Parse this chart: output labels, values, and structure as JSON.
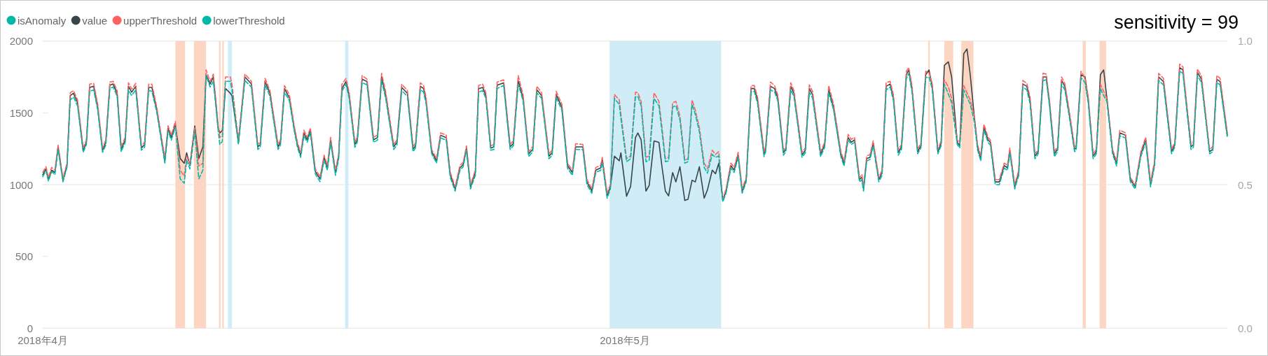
{
  "chart_data": {
    "type": "line",
    "title": "sensitivity = 99",
    "x": [
      "2018-04-01T00:00",
      "2018-04-01T04:00",
      "2018-04-01T07:00",
      "2018-04-01T11:00",
      "2018-04-01T15:00",
      "2018-04-01T19:00",
      "2018-04-02T01:00",
      "2018-04-02T06:00",
      "2018-04-02T10:00",
      "2018-04-02T14:00",
      "2018-04-02T19:00",
      "2018-04-03T02:00",
      "2018-04-03T06:00",
      "2018-04-03T10:00",
      "2018-04-03T15:00",
      "2018-04-03T20:00",
      "2018-04-04T02:00",
      "2018-04-04T06:00",
      "2018-04-04T11:00",
      "2018-04-04T15:00",
      "2018-04-04T20:00",
      "2018-04-05T01:00",
      "2018-04-05T06:00",
      "2018-04-05T10:00",
      "2018-04-05T14:00",
      "2018-04-05T19:00",
      "2018-04-06T02:00",
      "2018-04-06T06:00",
      "2018-04-06T11:00",
      "2018-04-06T15:00",
      "2018-04-06T21:00",
      "2018-04-07T07:00",
      "2018-04-07T11:00",
      "2018-04-07T15:00",
      "2018-04-07T20:00",
      "2018-04-08T02:00",
      "2018-04-08T07:00",
      "2018-04-08T10:00",
      "2018-04-08T14:00",
      "2018-04-08T20:00",
      "2018-04-09T01:00",
      "2018-04-09T06:00",
      "2018-04-09T10:00",
      "2018-04-09T15:00",
      "2018-04-09T19:00",
      "2018-04-10T01:00",
      "2018-04-10T03:00",
      "2018-04-10T06:00",
      "2018-04-10T10:00",
      "2018-04-10T16:00",
      "2018-04-10T18:00",
      "2018-04-11T02:00",
      "2018-04-11T10:00",
      "2018-04-11T18:00",
      "2018-04-12T02:00",
      "2018-04-12T05:00",
      "2018-04-12T11:00",
      "2018-04-12T17:00",
      "2018-04-13T03:00",
      "2018-04-13T06:00",
      "2018-04-13T11:00",
      "2018-04-13T17:00",
      "2018-04-13T23:00",
      "2018-04-14T03:00",
      "2018-04-14T07:00",
      "2018-04-14T11:00",
      "2018-04-14T15:00",
      "2018-04-14T19:00",
      "2018-04-15T01:00",
      "2018-04-15T07:00",
      "2018-04-15T12:00",
      "2018-04-15T16:00",
      "2018-04-15T20:00",
      "2018-04-16T02:00",
      "2018-04-16T06:00",
      "2018-04-16T10:00",
      "2018-04-16T15:00",
      "2018-04-16T19:00",
      "2018-04-17T02:00",
      "2018-04-17T05:00",
      "2018-04-17T11:00",
      "2018-04-17T17:00",
      "2018-04-18T01:00",
      "2018-04-18T06:00",
      "2018-04-18T11:00",
      "2018-04-18T16:00",
      "2018-04-19T02:00",
      "2018-04-19T06:00",
      "2018-04-19T12:00",
      "2018-04-19T19:00",
      "2018-04-20T02:00",
      "2018-04-20T05:00",
      "2018-04-20T11:00",
      "2018-04-20T15:00",
      "2018-04-20T18:00",
      "2018-04-21T01:00",
      "2018-04-21T07:00",
      "2018-04-21T12:00",
      "2018-04-21T19:00",
      "2018-04-22T00:00",
      "2018-04-22T06:00",
      "2018-04-22T12:00",
      "2018-04-22T16:00",
      "2018-04-22T20:00",
      "2018-04-23T01:00",
      "2018-04-23T07:00",
      "2018-04-23T11:00",
      "2018-04-23T16:00",
      "2018-04-23T20:00",
      "2018-04-24T02:00",
      "2018-04-24T06:00",
      "2018-04-24T10:00",
      "2018-04-24T18:00",
      "2018-04-25T02:00",
      "2018-04-25T06:00",
      "2018-04-25T12:00",
      "2018-04-25T18:00",
      "2018-04-26T01:00",
      "2018-04-26T06:00",
      "2018-04-26T11:00",
      "2018-04-26T17:00",
      "2018-04-27T02:00",
      "2018-04-27T06:00",
      "2018-04-27T11:00",
      "2018-04-27T18:00",
      "2018-04-28T01:00",
      "2018-04-28T07:00",
      "2018-04-28T11:00",
      "2018-04-28T20:00",
      "2018-04-29T01:00",
      "2018-04-29T07:00",
      "2018-04-29T12:00",
      "2018-04-29T18:00",
      "2018-04-29T20:00",
      "2018-04-30T02:00",
      "2018-04-30T06:00",
      "2018-04-30T11:00",
      "2018-04-30T17:00",
      "2018-04-30T19:00",
      "2018-05-01T02:00",
      "2018-05-01T07:00",
      "2018-05-01T13:00",
      "2018-05-01T16:00",
      "2018-05-01T20:00",
      "2018-05-02T02:00",
      "2018-05-02T06:00",
      "2018-05-02T12:00",
      "2018-05-02T18:00",
      "2018-05-02T22:00",
      "2018-05-03T02:00",
      "2018-05-03T06:00",
      "2018-05-03T11:00",
      "2018-05-03T15:00",
      "2018-05-03T20:00",
      "2018-05-04T02:00",
      "2018-05-04T06:00",
      "2018-05-04T11:00",
      "2018-05-04T15:00",
      "2018-05-04T20:00",
      "2018-05-05T02:00",
      "2018-05-05T06:00",
      "2018-05-05T12:00",
      "2018-05-05T16:00",
      "2018-05-05T20:00",
      "2018-05-06T01:00",
      "2018-05-06T05:00",
      "2018-05-06T11:00",
      "2018-05-06T15:00",
      "2018-05-06T20:00",
      "2018-05-07T01:00",
      "2018-05-07T06:00",
      "2018-05-07T12:00",
      "2018-05-07T16:00",
      "2018-05-07T20:00",
      "2018-05-08T04:00",
      "2018-05-08T06:00",
      "2018-05-08T12:00",
      "2018-05-08T17:00",
      "2018-05-08T21:00",
      "2018-05-09T04:00",
      "2018-05-09T07:00",
      "2018-05-09T13:00",
      "2018-05-09T17:00",
      "2018-05-10T03:00",
      "2018-05-10T07:00",
      "2018-05-10T12:00",
      "2018-05-10T16:00",
      "2018-05-11T02:00",
      "2018-05-11T07:00",
      "2018-05-11T12:00",
      "2018-05-11T18:00",
      "2018-05-12T03:00",
      "2018-05-12T07:00",
      "2018-05-12T12:00",
      "2018-05-12T16:00",
      "2018-05-12T20:00",
      "2018-05-13T02:00",
      "2018-05-13T05:00",
      "2018-05-13T07:00",
      "2018-05-13T11:00",
      "2018-05-13T15:00",
      "2018-05-13T19:00",
      "2018-05-14T02:00",
      "2018-05-14T06:00",
      "2018-05-14T11:00",
      "2018-05-14T16:00",
      "2018-05-14T20:00",
      "2018-05-15T02:00",
      "2018-05-15T06:00",
      "2018-05-15T12:00",
      "2018-05-15T15:00",
      "2018-05-15T19:00",
      "2018-05-16T02:00",
      "2018-05-16T06:00",
      "2018-05-16T12:00",
      "2018-05-16T16:00",
      "2018-05-16T20:00",
      "2018-05-17T03:00",
      "2018-05-17T07:00",
      "2018-05-17T11:00",
      "2018-05-17T16:00",
      "2018-05-17T20:00",
      "2018-05-18T03:00",
      "2018-05-18T06:00",
      "2018-05-18T11:00",
      "2018-05-18T15:00",
      "2018-05-18T19:00",
      "2018-05-19T00:00",
      "2018-05-19T04:00",
      "2018-05-19T08:00",
      "2018-05-19T12:00",
      "2018-05-19T17:00",
      "2018-05-19T20:00",
      "2018-05-20T02:00",
      "2018-05-20T07:00",
      "2018-05-20T13:00",
      "2018-05-20T17:00",
      "2018-05-20T20:00",
      "2018-05-21T02:00",
      "2018-05-21T07:00",
      "2018-05-21T12:00",
      "2018-05-21T17:00",
      "2018-05-21T21:00",
      "2018-05-22T03:00",
      "2018-05-22T07:00",
      "2018-05-22T13:00",
      "2018-05-22T17:00",
      "2018-05-22T21:00",
      "2018-05-23T03:00",
      "2018-05-23T07:00",
      "2018-05-23T12:00",
      "2018-05-23T16:00",
      "2018-05-23T22:00",
      "2018-05-24T04:00",
      "2018-05-24T06:00",
      "2018-05-24T12:00",
      "2018-05-24T17:00",
      "2018-05-24T21:00",
      "2018-05-25T03:00",
      "2018-05-25T07:00",
      "2018-05-25T12:00",
      "2018-05-25T16:00",
      "2018-05-25T20:00",
      "2018-05-26T03:00",
      "2018-05-26T08:00",
      "2018-05-26T12:00",
      "2018-05-26T19:00",
      "2018-05-27T01:00",
      "2018-05-27T07:00",
      "2018-05-27T14:00",
      "2018-05-27T20:00",
      "2018-05-28T02:00",
      "2018-05-28T07:00",
      "2018-05-28T12:00",
      "2018-05-28T18:00",
      "2018-05-29T04:00",
      "2018-05-29T08:00",
      "2018-05-29T14:00",
      "2018-05-29T18:00",
      "2018-05-30T04:00",
      "2018-05-30T07:00",
      "2018-05-30T12:00",
      "2018-05-30T17:00",
      "2018-05-31T03:00",
      "2018-05-31T07:00",
      "2018-05-31T12:00",
      "2018-05-31T16:00",
      "2018-06-01T01:00"
    ],
    "series": [
      {
        "name": "isAnomaly",
        "color": "#01b8aa",
        "values": [
          null,
          null,
          null,
          null,
          null,
          null,
          null,
          null,
          null,
          null,
          null,
          null,
          null,
          null,
          null,
          null,
          null,
          null,
          null,
          null,
          null,
          null,
          null,
          null,
          null,
          null,
          null,
          null,
          null,
          null,
          null,
          null,
          null,
          null,
          null,
          null,
          null,
          null,
          null,
          null,
          null,
          null,
          null,
          null,
          null,
          null,
          null,
          null,
          null,
          null,
          null,
          null,
          null,
          null,
          null,
          null,
          null,
          null,
          null,
          null,
          null,
          null,
          null,
          null,
          null,
          null,
          null,
          null,
          null,
          null,
          null,
          null,
          null,
          null,
          null,
          null,
          null,
          null,
          null,
          null,
          null,
          null,
          null,
          null,
          null,
          null,
          null,
          null,
          null,
          null,
          null,
          null,
          null,
          null,
          null,
          null,
          null,
          null,
          null,
          null,
          null,
          null,
          null,
          null,
          null,
          null,
          null,
          null,
          null,
          null,
          null,
          null,
          null,
          null,
          null,
          null,
          null,
          null,
          null,
          null,
          null,
          null,
          null,
          null,
          null,
          null,
          null,
          null,
          null,
          null,
          null,
          null,
          null,
          null,
          null,
          null,
          null,
          null,
          null,
          null,
          null,
          null,
          null,
          null,
          null,
          null,
          null,
          null,
          null,
          null,
          null,
          null,
          null,
          null,
          null,
          null,
          null,
          null,
          null,
          null,
          null,
          null,
          null,
          null,
          null,
          null,
          null,
          null,
          null,
          null,
          null,
          null,
          null,
          null,
          null,
          null,
          null,
          null,
          null,
          null,
          null,
          null,
          null,
          null,
          null,
          null,
          null,
          null,
          null,
          null,
          null,
          null,
          null,
          null,
          null,
          null,
          null,
          null,
          null,
          null,
          null,
          null,
          null,
          null,
          null,
          null,
          null,
          null,
          null,
          null,
          null,
          null,
          null,
          null,
          null,
          null,
          null,
          null,
          null,
          null,
          null,
          null,
          null,
          null,
          null,
          null,
          null,
          null,
          null,
          null,
          null,
          null,
          null,
          null,
          null,
          null,
          null,
          null,
          null,
          null,
          null,
          null,
          null,
          null,
          null,
          null,
          null,
          null,
          null,
          null,
          null,
          null,
          null,
          null,
          null,
          null,
          null,
          null,
          null,
          null,
          null,
          null,
          null,
          null,
          null,
          null,
          null,
          null,
          null,
          null,
          null,
          null,
          null,
          null,
          null,
          null,
          null,
          null,
          null,
          null,
          null,
          null,
          null,
          null,
          null,
          null,
          null,
          null
        ]
      },
      {
        "name": "value",
        "color": "#374649",
        "line_style": "solid",
        "values": [
          1068,
          1110,
          1036,
          1101,
          1084,
          1263,
          1032,
          1133,
          1620,
          1636,
          1571,
          1239,
          1295,
          1677,
          1685,
          1539,
          1239,
          1295,
          1693,
          1701,
          1636,
          1247,
          1312,
          1685,
          1644,
          1685,
          1255,
          1279,
          1677,
          1677,
          1523,
          1166,
          1393,
          1328,
          1417,
          1182,
          1149,
          1222,
          1133,
          1409,
          1182,
          1263,
          1766,
          1701,
          1750,
          1393,
          1360,
          1377,
          1670,
          1636,
          1620,
          1295,
          1750,
          1701,
          1263,
          1279,
          1718,
          1636,
          1263,
          1295,
          1669,
          1604,
          1393,
          1279,
          1206,
          1360,
          1312,
          1377,
          1093,
          1039,
          1190,
          1117,
          1312,
          1084,
          1198,
          1669,
          1718,
          1620,
          1279,
          1312,
          1734,
          1718,
          1312,
          1328,
          1750,
          1628,
          1263,
          1295,
          1677,
          1636,
          1247,
          1271,
          1685,
          1669,
          1588,
          1230,
          1166,
          1344,
          1328,
          1068,
          971,
          1117,
          1141,
          1255,
          987,
          1084,
          1669,
          1677,
          1620,
          1255,
          1263,
          1693,
          1709,
          1263,
          1287,
          1725,
          1604,
          1214,
          1247,
          1661,
          1620,
          1198,
          1222,
          1628,
          1539,
          1133,
          1084,
          1263,
          1263,
          1019,
          955,
          1101,
          1117,
          1174,
          922,
          987,
          1198,
          1166,
          1222,
          919,
          987,
          1328,
          1360,
          1312,
          955,
          995,
          1304,
          1295,
          1117,
          955,
          922,
          1084,
          1019,
          1125,
          890,
          898,
          1031,
          1019,
          1125,
          906,
          963,
          1101,
          1076,
          1149,
          890,
          955,
          1133,
          1101,
          1206,
          955,
          1036,
          1669,
          1669,
          1588,
          1214,
          1247,
          1685,
          1669,
          1604,
          1222,
          1247,
          1685,
          1636,
          1206,
          1239,
          1669,
          1628,
          1214,
          1279,
          1661,
          1539,
          1214,
          1149,
          1328,
          1295,
          1312,
          1036,
          1052,
          971,
          1182,
          1190,
          1287,
          1036,
          1084,
          1685,
          1701,
          1604,
          1222,
          1263,
          1766,
          1799,
          1669,
          1230,
          1271,
          1766,
          1799,
          1685,
          1230,
          1287,
          1831,
          1855,
          1750,
          1295,
          1271,
          1912,
          1945,
          1766,
          1474,
          1263,
          1182,
          1401,
          1312,
          1295,
          1019,
          1019,
          1133,
          1117,
          1239,
          987,
          1084,
          1701,
          1685,
          1588,
          1198,
          1230,
          1750,
          1750,
          1571,
          1214,
          1247,
          1725,
          1685,
          1474,
          1247,
          1255,
          1766,
          1750,
          1588,
          1198,
          1230,
          1766,
          1799,
          1604,
          1230,
          1149,
          1360,
          1344,
          1036,
          987,
          1214,
          1312,
          1003,
          1149,
          1750,
          1718,
          1230,
          1279,
          1815,
          1799,
          1263,
          1279,
          1782,
          1734,
          1230,
          1247,
          1734,
          1718,
          1344
        ]
      },
      {
        "name": "upperThreshold",
        "color": "#fd625e",
        "line_style": "dashed",
        "values": [
          1085,
          1125,
          1050,
          1120,
          1100,
          1275,
          1045,
          1150,
          1640,
          1655,
          1590,
          1255,
          1310,
          1700,
          1705,
          1560,
          1255,
          1310,
          1715,
          1720,
          1655,
          1265,
          1330,
          1710,
          1665,
          1705,
          1270,
          1295,
          1700,
          1700,
          1540,
          1185,
          1410,
          1345,
          1440,
          1100,
          1060,
          1200,
          1140,
          1395,
          1130,
          1150,
          1800,
          1720,
          1770,
          1410,
          1330,
          1340,
          1750,
          1750,
          1700,
          1310,
          1770,
          1720,
          1280,
          1295,
          1740,
          1655,
          1280,
          1310,
          1690,
          1625,
          1410,
          1295,
          1220,
          1380,
          1330,
          1395,
          1110,
          1055,
          1205,
          1135,
          1330,
          1100,
          1215,
          1700,
          1740,
          1640,
          1295,
          1330,
          1760,
          1735,
          1330,
          1345,
          1775,
          1650,
          1280,
          1310,
          1700,
          1655,
          1265,
          1290,
          1710,
          1690,
          1610,
          1245,
          1180,
          1360,
          1345,
          1085,
          985,
          1135,
          1155,
          1270,
          1000,
          1100,
          1690,
          1700,
          1640,
          1270,
          1280,
          1715,
          1730,
          1280,
          1305,
          1760,
          1625,
          1230,
          1265,
          1685,
          1640,
          1215,
          1240,
          1650,
          1560,
          1150,
          1100,
          1285,
          1280,
          1035,
          970,
          1120,
          1135,
          1190,
          940,
          1000,
          1628,
          1590,
          1490,
          1182,
          1200,
          1644,
          1640,
          1580,
          1190,
          1200,
          1640,
          1580,
          1390,
          1180,
          1190,
          1570,
          1580,
          1480,
          1170,
          1180,
          1590,
          1520,
          1400,
          1150,
          1110,
          1240,
          1210,
          1230,
          900,
          970,
          1150,
          1120,
          1225,
          970,
          1050,
          1690,
          1690,
          1610,
          1230,
          1265,
          1715,
          1690,
          1625,
          1240,
          1265,
          1710,
          1655,
          1225,
          1255,
          1695,
          1650,
          1230,
          1295,
          1690,
          1560,
          1230,
          1165,
          1350,
          1315,
          1330,
          1050,
          1070,
          985,
          1200,
          1210,
          1305,
          1050,
          1100,
          1710,
          1720,
          1625,
          1240,
          1280,
          1790,
          1815,
          1690,
          1245,
          1290,
          1790,
          1780,
          1705,
          1245,
          1305,
          1730,
          1680,
          1600,
          1310,
          1290,
          1690,
          1640,
          1590,
          1480,
          1280,
          1200,
          1420,
          1330,
          1310,
          1035,
          1035,
          1150,
          1135,
          1255,
          1000,
          1100,
          1725,
          1705,
          1610,
          1215,
          1245,
          1775,
          1770,
          1590,
          1230,
          1265,
          1750,
          1705,
          1495,
          1265,
          1270,
          1790,
          1740,
          1610,
          1215,
          1245,
          1700,
          1650,
          1600,
          1245,
          1165,
          1380,
          1360,
          1050,
          1000,
          1230,
          1330,
          1020,
          1165,
          1775,
          1740,
          1245,
          1295,
          1840,
          1820,
          1280,
          1295,
          1805,
          1755,
          1245,
          1265,
          1760,
          1740,
          1360
        ]
      },
      {
        "name": "lowerThreshold",
        "color": "#01b8aa",
        "line_style": "dashed",
        "values": [
          1055,
          1095,
          1025,
          1090,
          1070,
          1245,
          1020,
          1120,
          1590,
          1610,
          1550,
          1225,
          1280,
          1650,
          1660,
          1520,
          1225,
          1275,
          1670,
          1680,
          1615,
          1230,
          1295,
          1660,
          1620,
          1660,
          1240,
          1260,
          1655,
          1650,
          1505,
          1150,
          1375,
          1310,
          1400,
          1040,
          1010,
          1170,
          1110,
          1370,
          1040,
          1100,
          1760,
          1680,
          1720,
          1375,
          1280,
          1300,
          1720,
          1720,
          1660,
          1280,
          1725,
          1680,
          1245,
          1260,
          1695,
          1615,
          1245,
          1275,
          1645,
          1585,
          1375,
          1260,
          1190,
          1340,
          1295,
          1360,
          1075,
          1020,
          1170,
          1100,
          1295,
          1065,
          1180,
          1650,
          1700,
          1600,
          1260,
          1295,
          1710,
          1695,
          1295,
          1310,
          1725,
          1605,
          1245,
          1275,
          1655,
          1615,
          1230,
          1255,
          1660,
          1645,
          1565,
          1215,
          1150,
          1325,
          1310,
          1050,
          955,
          1100,
          1125,
          1240,
          970,
          1065,
          1645,
          1655,
          1600,
          1240,
          1245,
          1670,
          1690,
          1245,
          1270,
          1700,
          1585,
          1195,
          1230,
          1640,
          1600,
          1180,
          1205,
          1605,
          1520,
          1115,
          1065,
          1245,
          1245,
          1000,
          940,
          1085,
          1100,
          1155,
          905,
          970,
          1600,
          1560,
          1460,
          1160,
          1180,
          1610,
          1615,
          1550,
          1160,
          1170,
          1600,
          1550,
          1360,
          1160,
          1165,
          1540,
          1550,
          1450,
          1150,
          1160,
          1560,
          1490,
          1370,
          1120,
          1080,
          1210,
          1190,
          1200,
          880,
          940,
          1115,
          1085,
          1190,
          940,
          1020,
          1645,
          1650,
          1565,
          1195,
          1230,
          1660,
          1645,
          1585,
          1205,
          1230,
          1660,
          1615,
          1190,
          1220,
          1645,
          1605,
          1195,
          1260,
          1640,
          1520,
          1195,
          1130,
          1310,
          1280,
          1295,
          1020,
          1035,
          955,
          1165,
          1175,
          1270,
          1020,
          1065,
          1660,
          1680,
          1585,
          1205,
          1245,
          1740,
          1775,
          1645,
          1215,
          1255,
          1745,
          1750,
          1665,
          1215,
          1270,
          1700,
          1630,
          1570,
          1280,
          1255,
          1660,
          1610,
          1560,
          1440,
          1245,
          1165,
          1380,
          1295,
          1275,
          1000,
          1000,
          1115,
          1100,
          1220,
          970,
          1065,
          1680,
          1660,
          1565,
          1180,
          1215,
          1725,
          1730,
          1550,
          1195,
          1230,
          1700,
          1660,
          1455,
          1230,
          1240,
          1745,
          1710,
          1565,
          1180,
          1215,
          1670,
          1620,
          1580,
          1215,
          1130,
          1340,
          1325,
          1020,
          970,
          1195,
          1295,
          985,
          1130,
          1725,
          1695,
          1215,
          1260,
          1790,
          1775,
          1245,
          1260,
          1760,
          1710,
          1215,
          1230,
          1710,
          1695,
          1325
        ]
      }
    ],
    "xlim": [
      "2018-04-01T00:00",
      "2018-06-01T01:00"
    ],
    "xticks": [
      {
        "value": "2018-04-01",
        "label": "2018年4月"
      },
      {
        "value": "2018-05-01",
        "label": "2018年5月"
      }
    ],
    "ylim": [
      0,
      2000
    ],
    "yticks": [
      0,
      500,
      1000,
      1500,
      2000
    ],
    "y2lim": [
      0,
      1
    ],
    "y2ticks": [
      {
        "value": 0,
        "label": "0.0"
      },
      {
        "value": 0.5,
        "label": "0.5"
      },
      {
        "value": 1,
        "label": "1.0"
      }
    ],
    "bands": [
      {
        "axis": "x",
        "from": "2018-04-07T20:00",
        "to": "2018-04-08T08:00",
        "color": "#fdd5c3"
      },
      {
        "axis": "x",
        "from": "2018-04-08T19:00",
        "to": "2018-04-09T10:00",
        "color": "#fdd5c3"
      },
      {
        "axis": "x",
        "from": "2018-04-10T02:00",
        "to": "2018-04-10T04:00",
        "color": "#fdd5c3"
      },
      {
        "axis": "x",
        "from": "2018-04-10T06:00",
        "to": "2018-04-10T08:00",
        "color": "#fdd5c3"
      },
      {
        "axis": "x",
        "from": "2018-04-10T13:00",
        "to": "2018-04-10T18:00",
        "color": "#cfecf7"
      },
      {
        "axis": "x",
        "from": "2018-04-16T14:00",
        "to": "2018-04-16T18:00",
        "color": "#cfecf7"
      },
      {
        "axis": "x",
        "from": "2018-04-30T05:00",
        "to": "2018-05-05T23:00",
        "color": "#cfecf7"
      },
      {
        "axis": "x",
        "from": "2018-05-16T15:00",
        "to": "2018-05-16T17:00",
        "color": "#fdd5c3"
      },
      {
        "axis": "x",
        "from": "2018-05-17T11:00",
        "to": "2018-05-17T22:00",
        "color": "#fdd5c3"
      },
      {
        "axis": "x",
        "from": "2018-05-18T08:00",
        "to": "2018-05-18T23:00",
        "color": "#fdd5c3"
      },
      {
        "axis": "x",
        "from": "2018-05-24T14:00",
        "to": "2018-05-24T18:00",
        "color": "#fdd5c3"
      },
      {
        "axis": "x",
        "from": "2018-05-25T11:00",
        "to": "2018-05-25T19:00",
        "color": "#fdd5c3"
      }
    ],
    "grid": "y2",
    "legend": "top left"
  }
}
